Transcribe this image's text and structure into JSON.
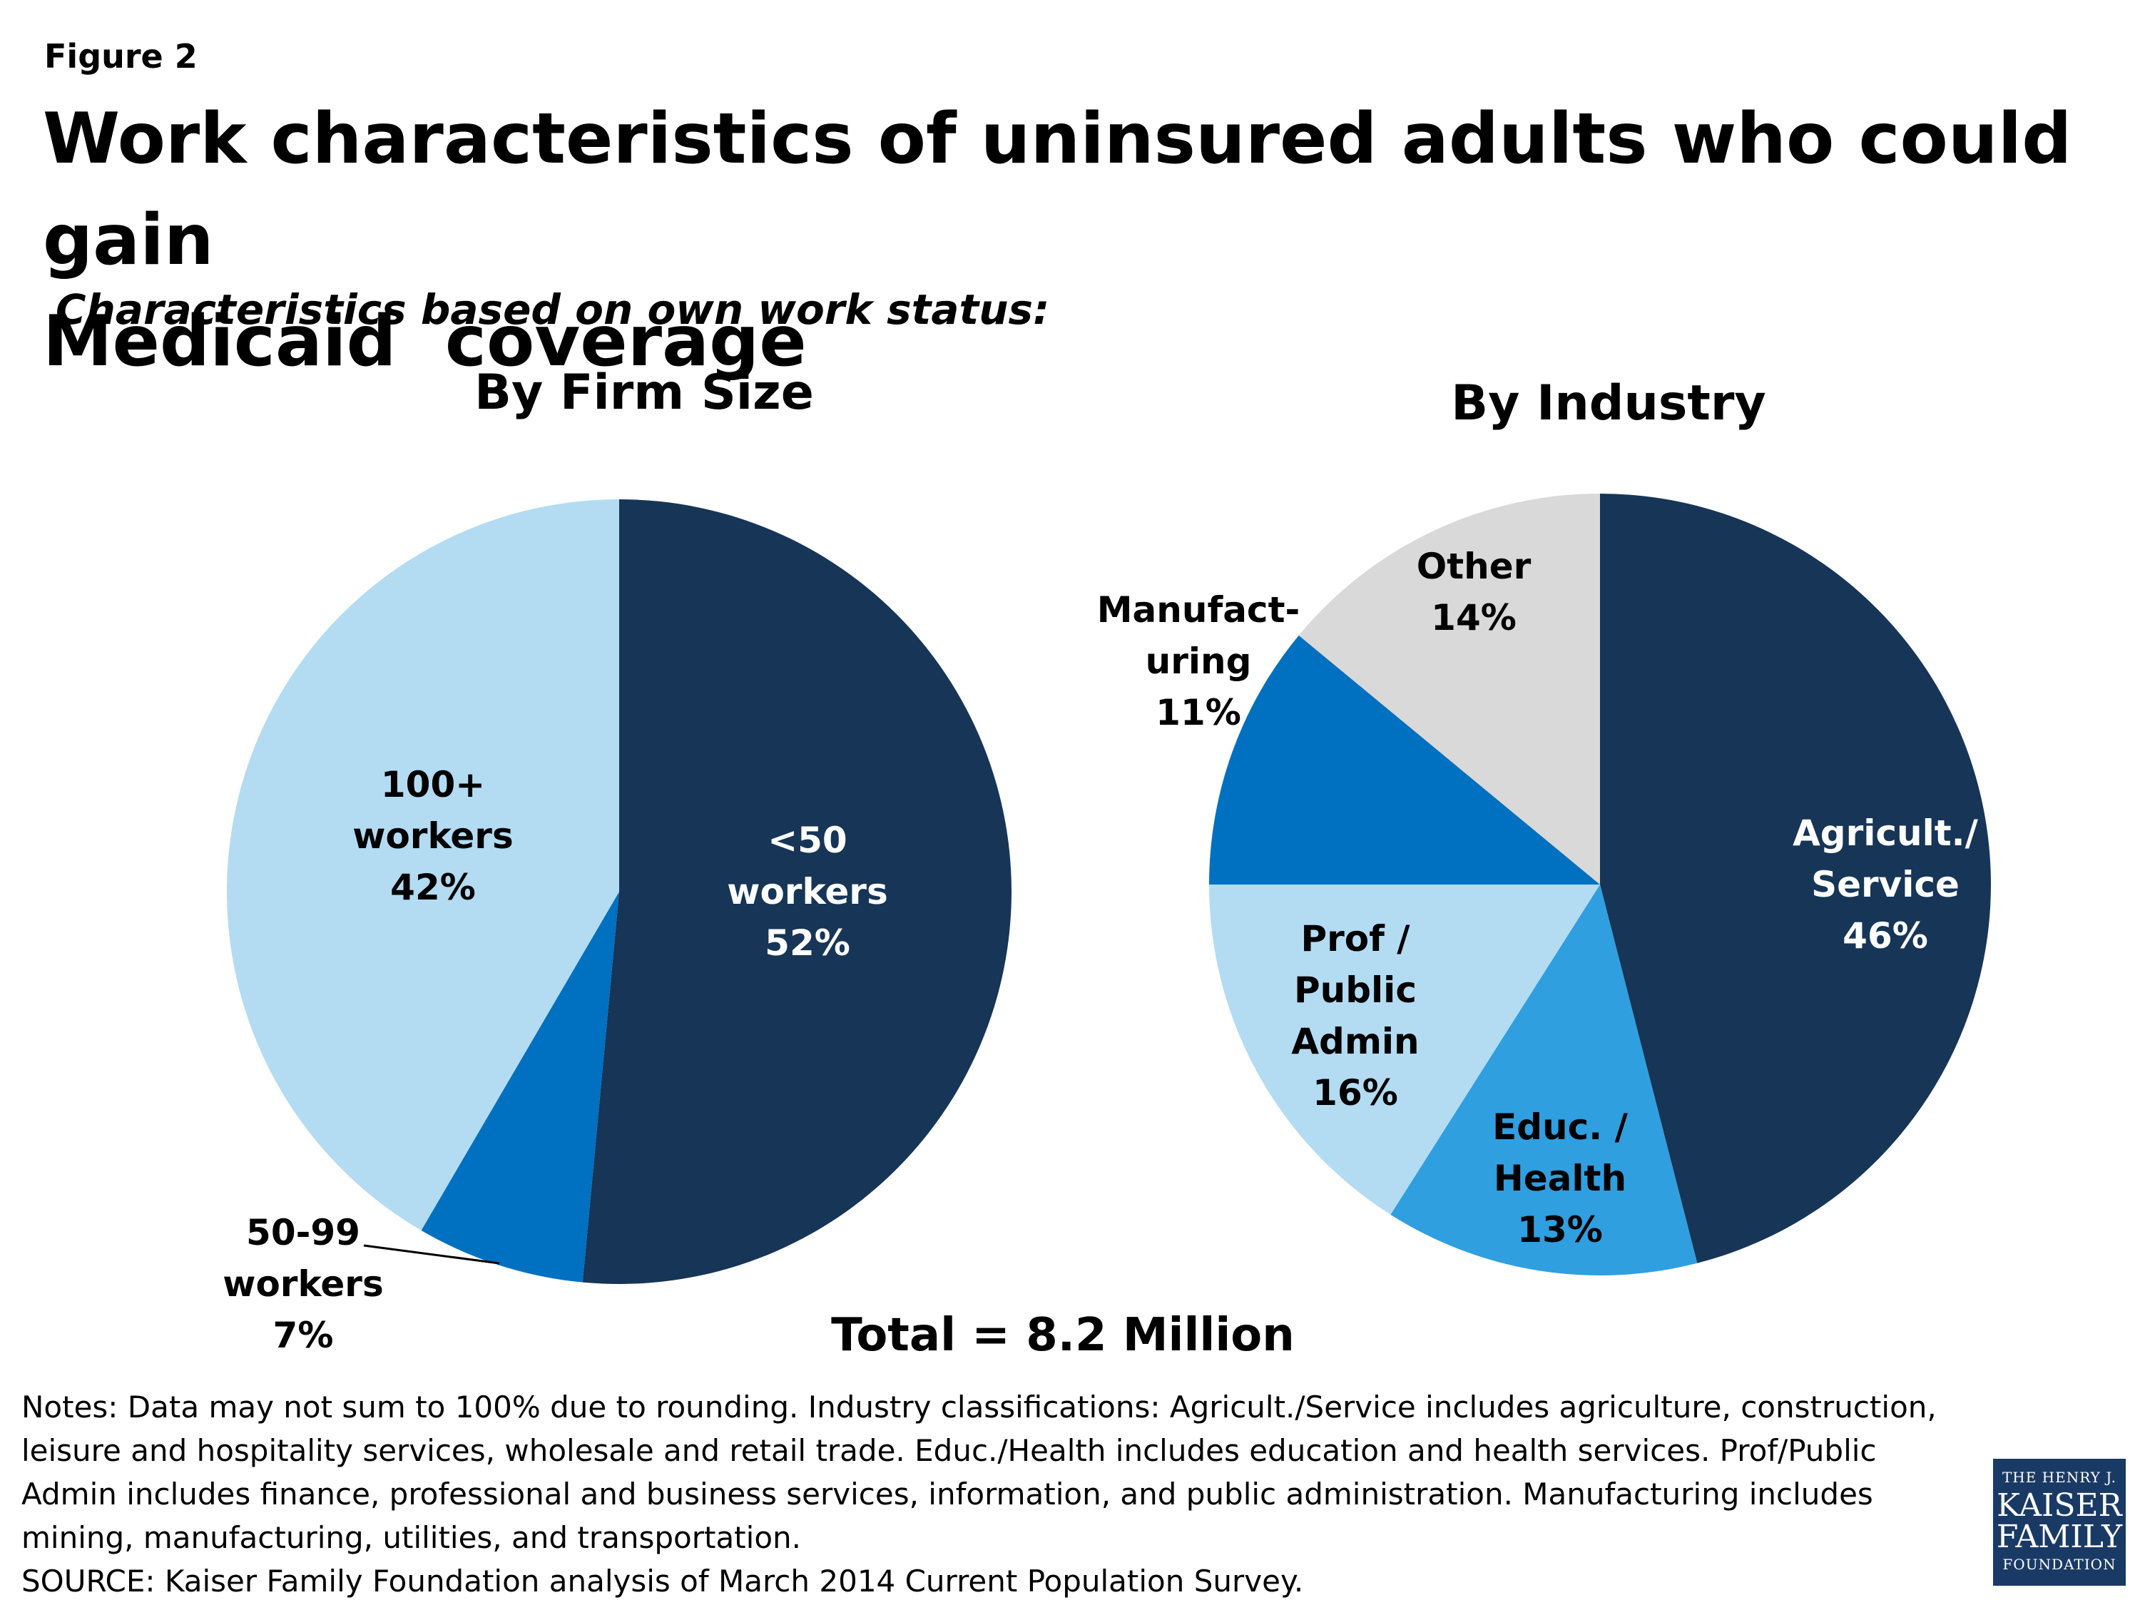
{
  "figure_label": "Figure 2",
  "title_line1": "Work characteristics of uninsured adults who could gain",
  "title_line2": "Medicaid  coverage",
  "subtitle": "Characteristics based on own work status:",
  "colors": {
    "dark_navy": "#163557",
    "medium_blue": "#0070c0",
    "light_blue": "#b3dcf3",
    "sky_blue": "#2f9fe0",
    "light_gray": "#d9d9d9"
  },
  "chart_data": [
    {
      "type": "pie",
      "title": "By Firm Size",
      "slices": [
        {
          "name": "<50 workers",
          "label_lines": [
            "<50",
            "workers",
            "52%"
          ],
          "value": 52,
          "color": "#163557",
          "text_color": "#ffffff"
        },
        {
          "name": "50-99 workers",
          "label_lines": [
            "50-99",
            "workers",
            "7%"
          ],
          "value": 7,
          "color": "#0070c0",
          "text_color": "#000000"
        },
        {
          "name": "100+ workers",
          "label_lines": [
            "100+",
            "workers",
            "42%"
          ],
          "value": 42,
          "color": "#b3dcf3",
          "text_color": "#000000"
        }
      ]
    },
    {
      "type": "pie",
      "title": "By Industry",
      "slices": [
        {
          "name": "Agricult./ Service",
          "label_lines": [
            "Agricult./",
            "Service",
            "46%"
          ],
          "value": 46,
          "color": "#163557",
          "text_color": "#ffffff"
        },
        {
          "name": "Educ. / Health",
          "label_lines": [
            "Educ. /",
            "Health",
            "13%"
          ],
          "value": 13,
          "color": "#2f9fe0",
          "text_color": "#000000"
        },
        {
          "name": "Prof / Public Admin",
          "label_lines": [
            "Prof /",
            "Public",
            "Admin",
            "16%"
          ],
          "value": 16,
          "color": "#b3dcf3",
          "text_color": "#000000"
        },
        {
          "name": "Manufacturing",
          "label_lines": [
            "Manufact-",
            "uring",
            "11%"
          ],
          "value": 11,
          "color": "#0070c0",
          "text_color": "#000000"
        },
        {
          "name": "Other",
          "label_lines": [
            "Other",
            "14%"
          ],
          "value": 14,
          "color": "#d9d9d9",
          "text_color": "#000000"
        }
      ]
    }
  ],
  "total_label": "Total = 8.2 Million",
  "notes": "Notes: Data may not sum to 100% due to rounding. Industry classifications: Agricult./Service includes agriculture, construction, leisure and hospitality services, wholesale and retail trade. Educ./Health includes education and health services. Prof/Public Admin includes finance, professional and business services, information, and public administration. Manufacturing includes mining, manufacturing, utilities, and transportation.",
  "source": "SOURCE: Kaiser Family Foundation analysis of March 2014 Current Population Survey.",
  "logo": {
    "line1": "THE HENRY J.",
    "line2": "KAISER",
    "line3": "FAMILY",
    "line4": "FOUNDATION"
  }
}
